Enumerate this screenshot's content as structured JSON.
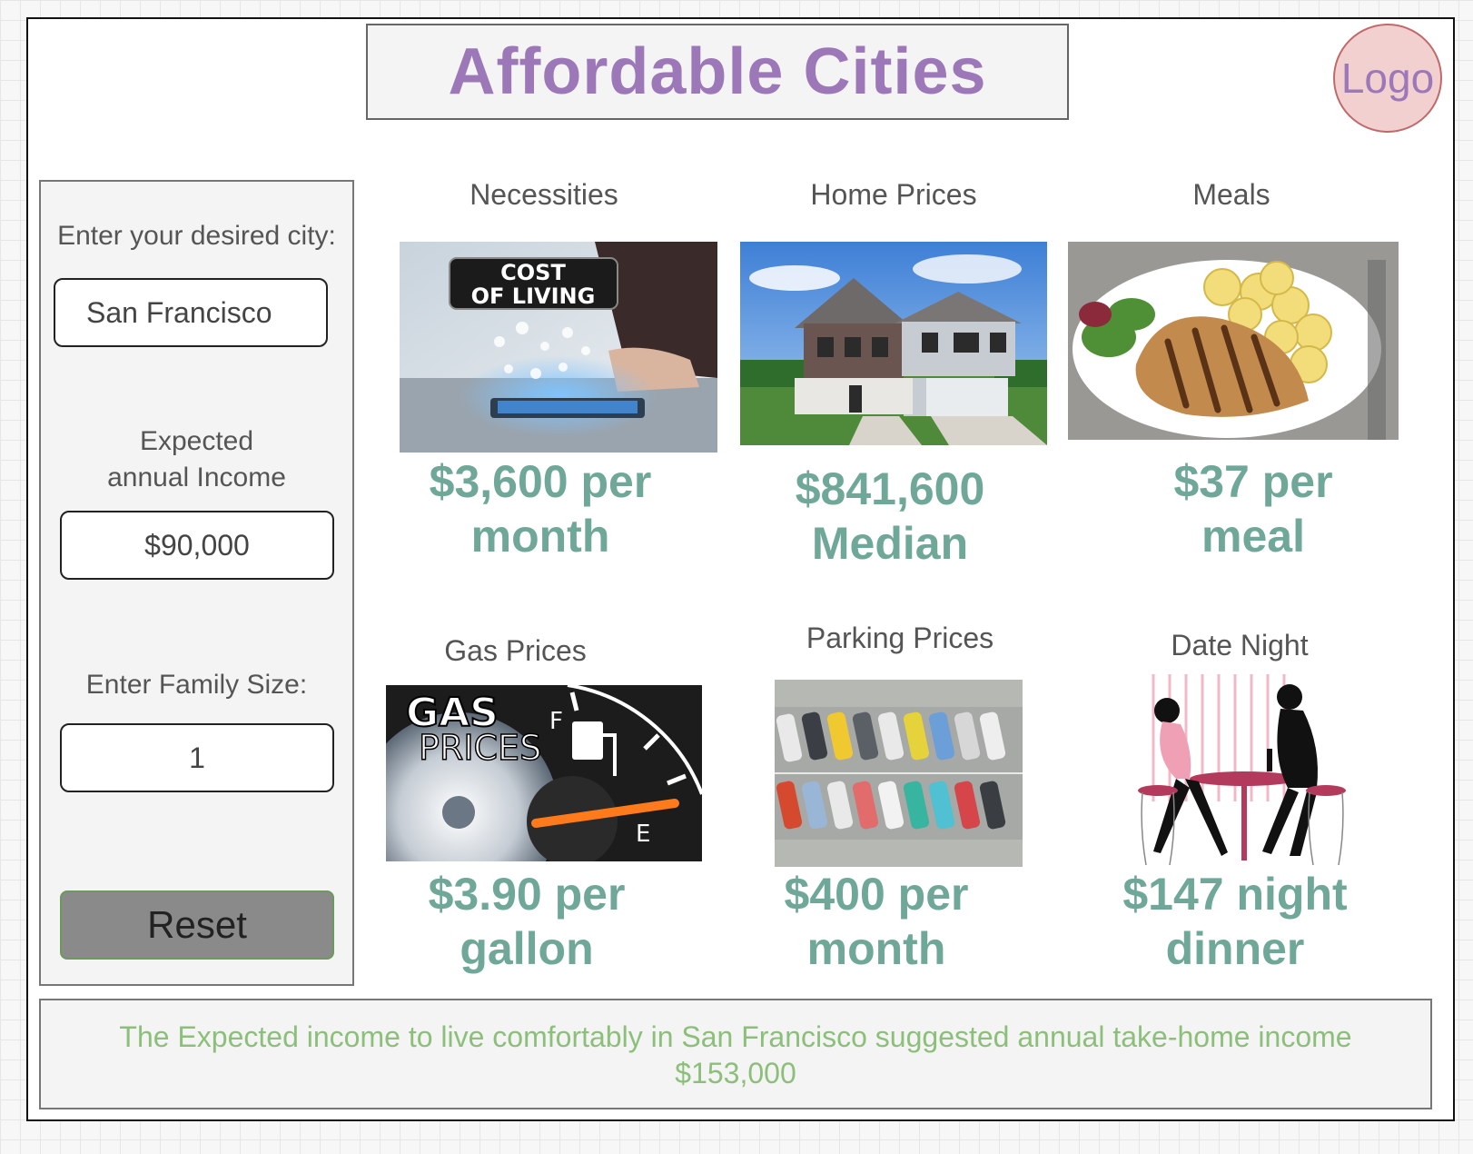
{
  "header": {
    "title": "Affordable Cities",
    "logo_label": "Logo"
  },
  "sidebar": {
    "city_label": "Enter your desired city:",
    "city_value": "San Francisco",
    "income_label_line1": "Expected",
    "income_label_line2": "annual Income",
    "income_value": "$90,000",
    "family_label": "Enter Family Size:",
    "family_value": "1",
    "reset_label": "Reset"
  },
  "cards": {
    "necessities": {
      "label": "Necessities",
      "image_caption_line1": "COST",
      "image_caption_line2": "OF LIVING",
      "price_line1": "$3,600 per",
      "price_line2": "month"
    },
    "home": {
      "label": "Home Prices",
      "price_line1": "$841,600",
      "price_line2": "Median"
    },
    "meals": {
      "label": "Meals",
      "price_line1": "$37 per",
      "price_line2": "meal"
    },
    "gas": {
      "label": "Gas Prices",
      "image_caption_line1": "GAS",
      "image_caption_line2": "PRICES",
      "gauge_full": "F",
      "gauge_empty": "E",
      "price_line1": "$3.90 per",
      "price_line2": "gallon"
    },
    "parking": {
      "label": "Parking Prices",
      "price_line1": "$400 per",
      "price_line2": "month"
    },
    "date": {
      "label": "Date Night",
      "price_line1": "$147 night",
      "price_line2": "dinner"
    }
  },
  "footer": {
    "line1": "The Expected income to live comfortably in San Francisco suggested  annual take-home income",
    "line2": "$153,000"
  }
}
